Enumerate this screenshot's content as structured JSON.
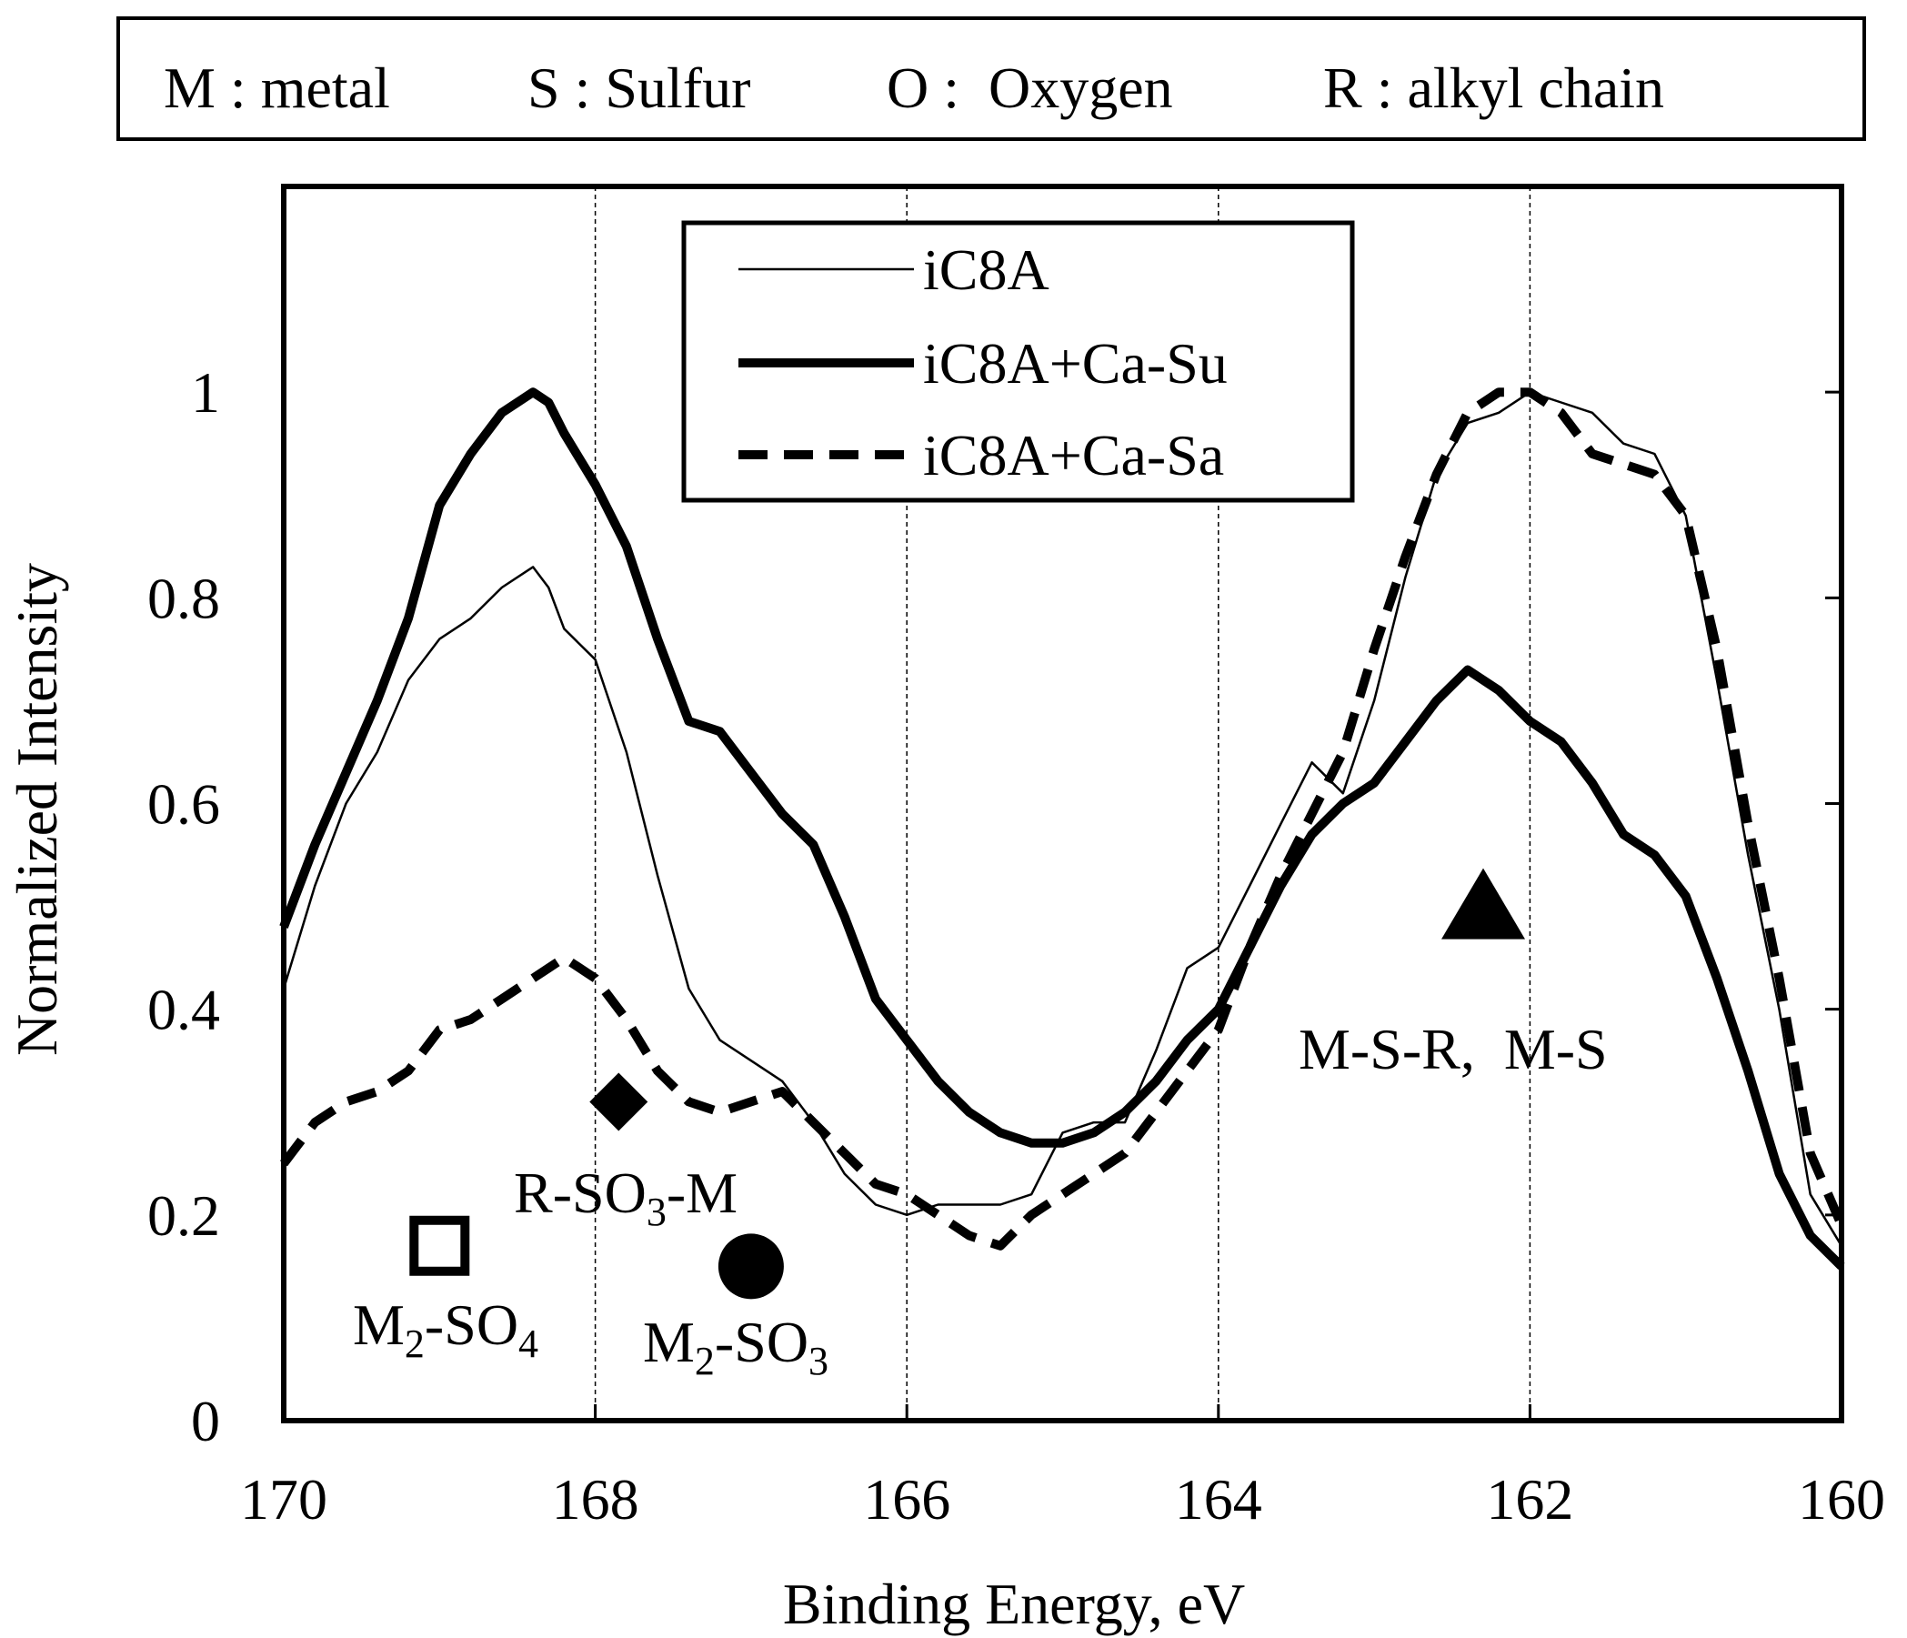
{
  "chart_data": {
    "type": "line",
    "title": "",
    "xlabel": "Binding Energy, eV",
    "ylabel": "Normalized Intensity",
    "xlim": [
      170,
      160
    ],
    "ylim": [
      0,
      1.2
    ],
    "x_ticks": [
      "170",
      "168",
      "166",
      "164",
      "162",
      "160"
    ],
    "y_ticks": [
      "0",
      "0.2",
      "0.4",
      "0.6",
      "0.8",
      "1"
    ],
    "x_tick_values": [
      170,
      168,
      166,
      164,
      162,
      160
    ],
    "y_tick_values": [
      0,
      0.2,
      0.4,
      0.6,
      0.8,
      1.0
    ],
    "gridlines_x": [
      168,
      166,
      164,
      162
    ],
    "legend_placement": "top-center",
    "key_box": [
      "M : metal",
      "S : Sulfur",
      "O :  Oxygen",
      "R : alkyl chain"
    ],
    "series": [
      {
        "name": "iC8A",
        "style": "thin",
        "x": [
          170,
          169.8,
          169.6,
          169.4,
          169.2,
          169.0,
          168.8,
          168.6,
          168.4,
          168.3,
          168.2,
          168.0,
          167.8,
          167.6,
          167.4,
          167.2,
          167.0,
          166.8,
          166.6,
          166.4,
          166.2,
          166.0,
          165.8,
          165.6,
          165.4,
          165.2,
          165.0,
          164.8,
          164.6,
          164.4,
          164.2,
          164.0,
          163.8,
          163.6,
          163.4,
          163.2,
          163.0,
          162.8,
          162.6,
          162.4,
          162.2,
          162.0,
          161.8,
          161.6,
          161.4,
          161.2,
          161.0,
          160.8,
          160.6,
          160.4,
          160.2,
          160.0
        ],
        "values": [
          0.42,
          0.52,
          0.6,
          0.65,
          0.72,
          0.76,
          0.78,
          0.81,
          0.83,
          0.81,
          0.77,
          0.74,
          0.65,
          0.53,
          0.42,
          0.37,
          0.35,
          0.33,
          0.29,
          0.24,
          0.21,
          0.2,
          0.21,
          0.21,
          0.21,
          0.22,
          0.28,
          0.29,
          0.29,
          0.36,
          0.44,
          0.46,
          0.52,
          0.58,
          0.64,
          0.61,
          0.7,
          0.82,
          0.92,
          0.97,
          0.98,
          1.0,
          0.99,
          0.98,
          0.95,
          0.94,
          0.88,
          0.72,
          0.55,
          0.4,
          0.22,
          0.17
        ]
      },
      {
        "name": "iC8A+Ca-Su",
        "style": "bold",
        "x": [
          170,
          169.8,
          169.6,
          169.4,
          169.2,
          169.0,
          168.8,
          168.6,
          168.4,
          168.3,
          168.2,
          168.0,
          167.8,
          167.6,
          167.4,
          167.2,
          167.0,
          166.8,
          166.6,
          166.4,
          166.2,
          166.0,
          165.8,
          165.6,
          165.4,
          165.2,
          165.0,
          164.8,
          164.6,
          164.4,
          164.2,
          164.0,
          163.8,
          163.6,
          163.4,
          163.2,
          163.0,
          162.8,
          162.6,
          162.4,
          162.2,
          162.0,
          161.8,
          161.6,
          161.4,
          161.2,
          161.0,
          160.8,
          160.6,
          160.4,
          160.2,
          160.0
        ],
        "values": [
          0.48,
          0.56,
          0.63,
          0.7,
          0.78,
          0.89,
          0.94,
          0.98,
          1.0,
          0.99,
          0.96,
          0.91,
          0.85,
          0.76,
          0.68,
          0.67,
          0.63,
          0.59,
          0.56,
          0.49,
          0.41,
          0.37,
          0.33,
          0.3,
          0.28,
          0.27,
          0.27,
          0.28,
          0.3,
          0.33,
          0.37,
          0.4,
          0.46,
          0.52,
          0.57,
          0.6,
          0.62,
          0.66,
          0.7,
          0.73,
          0.71,
          0.68,
          0.66,
          0.62,
          0.57,
          0.55,
          0.51,
          0.43,
          0.34,
          0.24,
          0.18,
          0.15
        ]
      },
      {
        "name": "iC8A+Ca-Sa",
        "style": "dashed",
        "x": [
          170,
          169.8,
          169.6,
          169.4,
          169.2,
          169.0,
          168.8,
          168.6,
          168.4,
          168.3,
          168.2,
          168.0,
          167.8,
          167.6,
          167.4,
          167.2,
          167.0,
          166.8,
          166.6,
          166.4,
          166.2,
          166.0,
          165.8,
          165.6,
          165.4,
          165.2,
          165.0,
          164.8,
          164.6,
          164.4,
          164.2,
          164.0,
          163.8,
          163.6,
          163.4,
          163.2,
          163.0,
          162.8,
          162.6,
          162.4,
          162.2,
          162.0,
          161.8,
          161.6,
          161.4,
          161.2,
          161.0,
          160.8,
          160.6,
          160.4,
          160.2,
          160.0
        ],
        "values": [
          0.25,
          0.29,
          0.31,
          0.32,
          0.34,
          0.38,
          0.39,
          0.41,
          0.43,
          0.44,
          0.45,
          0.43,
          0.39,
          0.34,
          0.31,
          0.3,
          0.31,
          0.32,
          0.29,
          0.26,
          0.23,
          0.22,
          0.2,
          0.18,
          0.17,
          0.2,
          0.22,
          0.24,
          0.26,
          0.3,
          0.34,
          0.38,
          0.46,
          0.53,
          0.59,
          0.65,
          0.75,
          0.84,
          0.92,
          0.98,
          1.0,
          1.0,
          0.98,
          0.94,
          0.93,
          0.92,
          0.88,
          0.75,
          0.58,
          0.43,
          0.26,
          0.19
        ]
      }
    ],
    "annotations": [
      {
        "label": "M-S-R,  M-S",
        "marker": "filled-triangle",
        "marker_x": 162.3,
        "marker_y": 0.5
      },
      {
        "label_parts": [
          "M",
          "2",
          "-SO",
          "4"
        ],
        "marker": "open-square",
        "marker_x": 169.0,
        "marker_y": 0.17
      },
      {
        "label_parts": [
          "R-SO",
          "3",
          "-M"
        ],
        "marker": "filled-diamond",
        "marker_x": 167.85,
        "marker_y": 0.31
      },
      {
        "label_parts": [
          "M",
          "2",
          "-SO",
          "3"
        ],
        "marker": "filled-circle",
        "marker_x": 167.0,
        "marker_y": 0.15
      }
    ]
  }
}
